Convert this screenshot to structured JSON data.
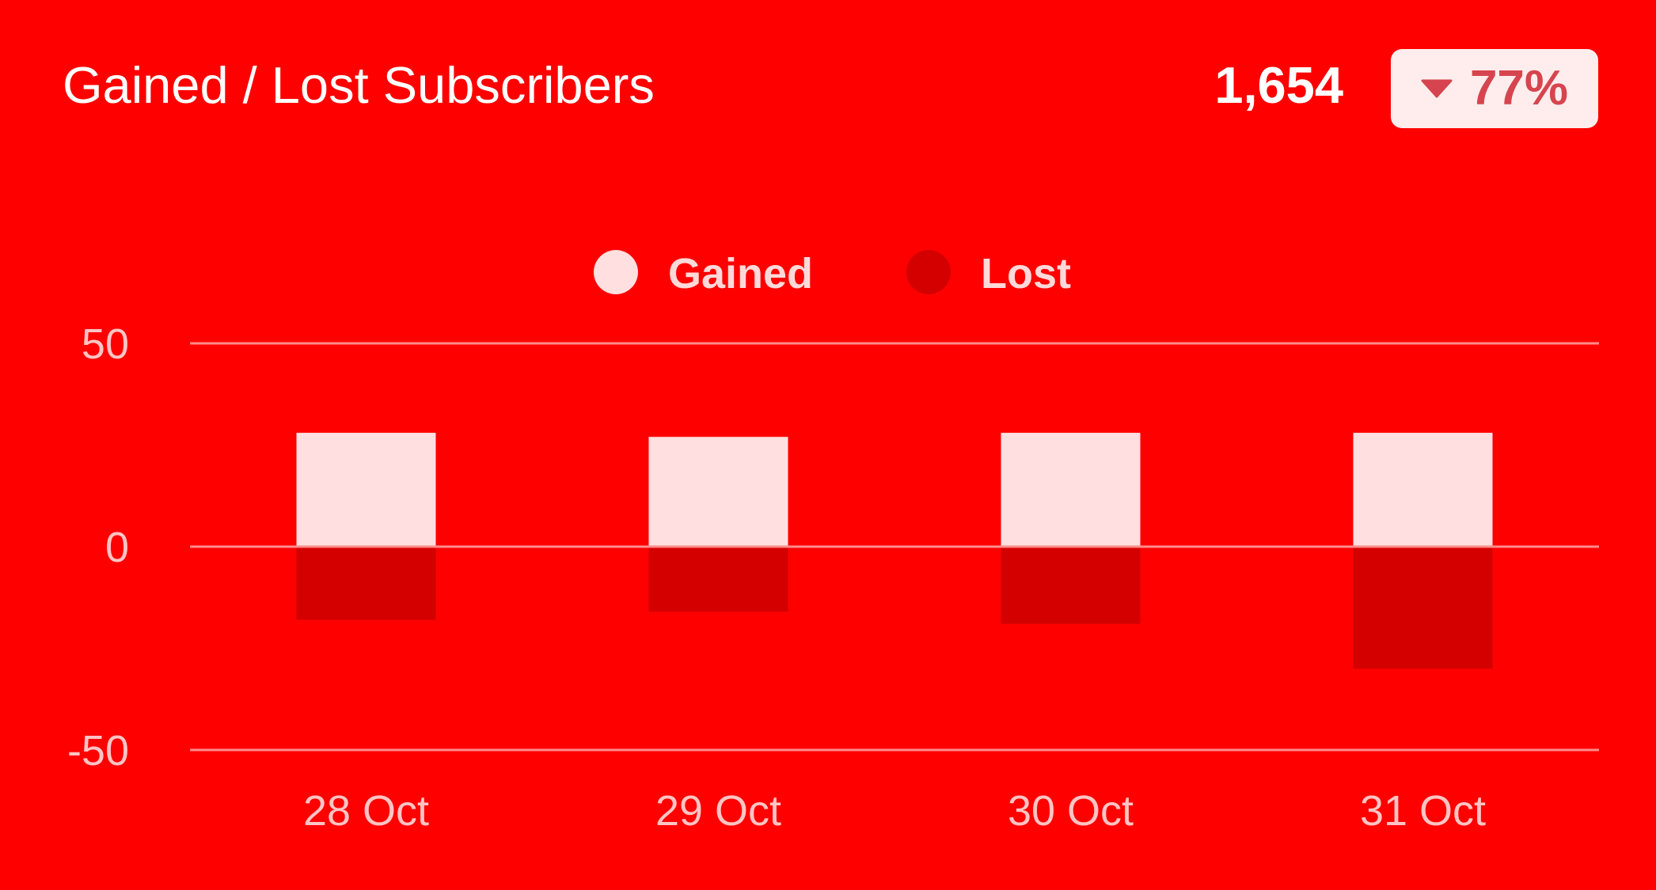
{
  "header": {
    "title": "Gained / Lost Subscribers",
    "total": "1,654",
    "badge": {
      "value": "77%",
      "icon": "caret-down-icon",
      "color": "#d6454f"
    }
  },
  "colors": {
    "background": "#ff0000",
    "gained": "#ffdfe0",
    "lost": "#d40000",
    "gridline": "#ff8c8c",
    "tick_text": "#ffc4c4"
  },
  "chart_data": {
    "type": "bar",
    "stacked": true,
    "categories": [
      "28 Oct",
      "29 Oct",
      "30 Oct",
      "31 Oct"
    ],
    "series": [
      {
        "name": "Gained",
        "values": [
          28,
          27,
          28,
          28
        ]
      },
      {
        "name": "Lost",
        "values": [
          -18,
          -16,
          -19,
          -30
        ]
      }
    ],
    "y_ticks": [
      "50",
      "0",
      "-50"
    ],
    "ylim": [
      -50,
      50
    ],
    "grid": true,
    "legend_position": "top-center"
  }
}
